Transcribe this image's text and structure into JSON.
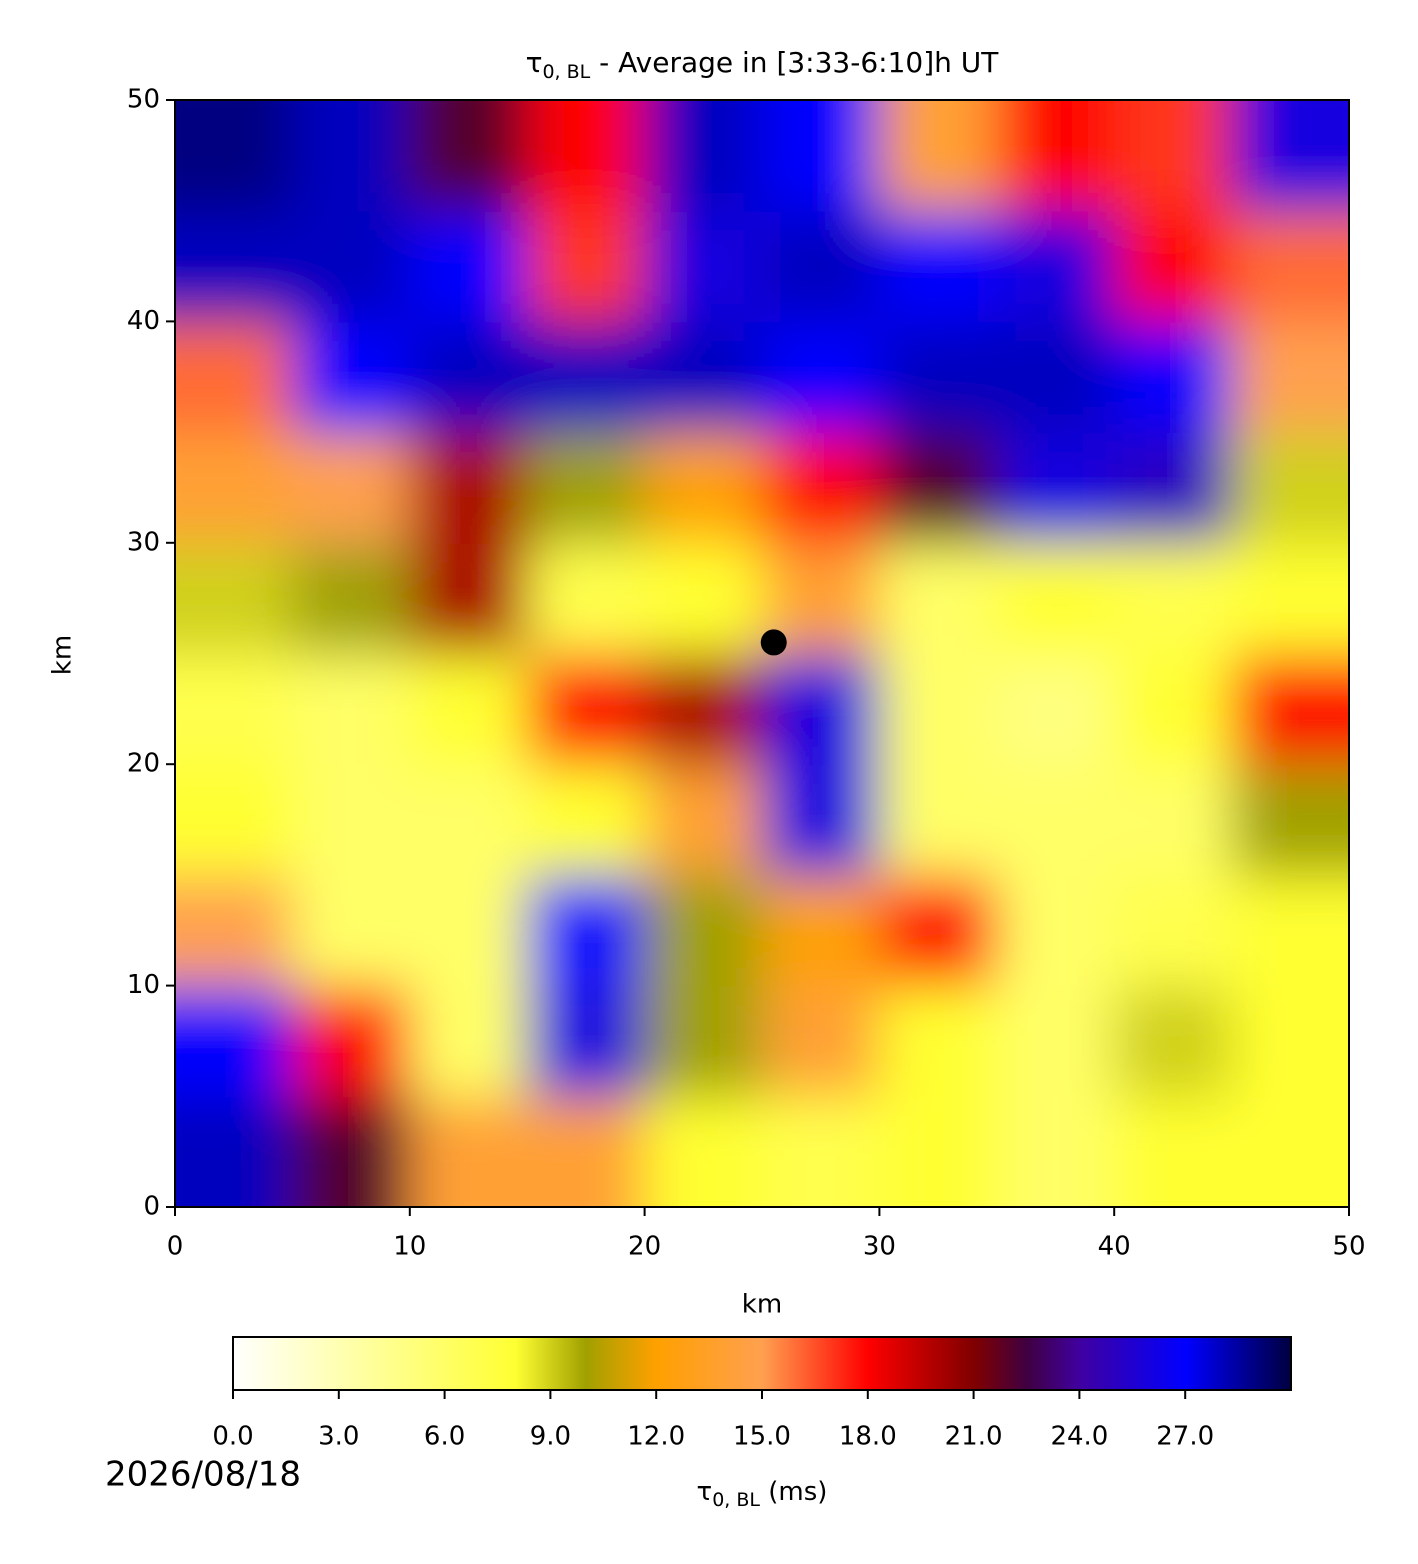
{
  "chart_data": {
    "type": "heatmap",
    "title_symbol": "τ",
    "title_subscript": "0, BL",
    "title_rest": " - Average in [3:33-6:10]h UT",
    "xlabel": "km",
    "ylabel": "km",
    "xlim": [
      0,
      50
    ],
    "ylim": [
      0,
      50
    ],
    "xticks": [
      0,
      10,
      20,
      30,
      40,
      50
    ],
    "yticks": [
      0,
      10,
      20,
      30,
      40,
      50
    ],
    "cell_size": 5,
    "z": [
      [
        28,
        22,
        14,
        14,
        8,
        7,
        8,
        6,
        8,
        8
      ],
      [
        27,
        18,
        6,
        26,
        10,
        14,
        8,
        6,
        9,
        8
      ],
      [
        15,
        6,
        6,
        27,
        10,
        12,
        18,
        6,
        7,
        8
      ],
      [
        8,
        6,
        6,
        8,
        14,
        26,
        6,
        6,
        6,
        10
      ],
      [
        7,
        6,
        8,
        18,
        20,
        26,
        6,
        5,
        8,
        18
      ],
      [
        9,
        10,
        20,
        7,
        8,
        14,
        6,
        8,
        7,
        8
      ],
      [
        14,
        15,
        20,
        10,
        12,
        18,
        22,
        26,
        25,
        9
      ],
      [
        16,
        27,
        28,
        28,
        28,
        27,
        28,
        28,
        27,
        15
      ],
      [
        28,
        28,
        27,
        17,
        26,
        28,
        27,
        26,
        18,
        16
      ],
      [
        29,
        28,
        22,
        18,
        28,
        27,
        14,
        18,
        17,
        26
      ]
    ],
    "point": {
      "x": 25.5,
      "y": 25.5,
      "color": "#000000"
    },
    "colormap": [
      {
        "value": 0,
        "color": "#ffffff"
      },
      {
        "value": 8,
        "color": "#ffff33"
      },
      {
        "value": 10,
        "color": "#a0a000"
      },
      {
        "value": 12,
        "color": "#ffa000"
      },
      {
        "value": 15,
        "color": "#ffa050"
      },
      {
        "value": 18,
        "color": "#ff0000"
      },
      {
        "value": 21,
        "color": "#800000"
      },
      {
        "value": 22.5,
        "color": "#400040"
      },
      {
        "value": 24,
        "color": "#4000a0"
      },
      {
        "value": 27,
        "color": "#0000ff"
      },
      {
        "value": 30,
        "color": "#000040"
      }
    ],
    "clim": [
      0,
      30
    ],
    "cticks": [
      {
        "value": 0,
        "label": "0.0"
      },
      {
        "value": 3,
        "label": "3.0"
      },
      {
        "value": 6,
        "label": "6.0"
      },
      {
        "value": 9,
        "label": "9.0"
      },
      {
        "value": 12,
        "label": "12.0"
      },
      {
        "value": 15,
        "label": "15.0"
      },
      {
        "value": 18,
        "label": "18.0"
      },
      {
        "value": 21,
        "label": "21.0"
      },
      {
        "value": 24,
        "label": "24.0"
      },
      {
        "value": 27,
        "label": "27.0"
      }
    ],
    "cbar_symbol": "τ",
    "cbar_subscript": "0, BL",
    "cbar_unit": " (ms)",
    "date": "2026/08/18"
  }
}
